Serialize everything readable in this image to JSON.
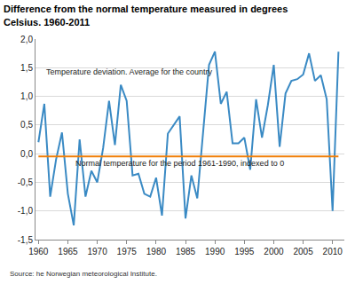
{
  "chart_data": {
    "type": "line",
    "title": "Difference from the normal temperature measured in degrees\nCelsius. 1960-2011",
    "source": "Source: he Norwegian meteorological Institute.",
    "x": [
      1960,
      1961,
      1962,
      1963,
      1964,
      1965,
      1966,
      1967,
      1968,
      1969,
      1970,
      1971,
      1972,
      1973,
      1974,
      1975,
      1976,
      1977,
      1978,
      1979,
      1980,
      1981,
      1982,
      1983,
      1984,
      1985,
      1986,
      1987,
      1988,
      1989,
      1990,
      1991,
      1992,
      1993,
      1994,
      1995,
      1996,
      1997,
      1998,
      1999,
      2000,
      2001,
      2002,
      2003,
      2004,
      2005,
      2006,
      2007,
      2008,
      2009,
      2010,
      2011
    ],
    "series": [
      {
        "color": "#3a8ac4",
        "values": [
          0.2,
          0.87,
          -0.75,
          -0.1,
          0.37,
          -0.7,
          -1.25,
          0.25,
          -0.75,
          -0.3,
          -0.5,
          0.1,
          0.92,
          0.15,
          1.2,
          0.92,
          -0.38,
          -0.35,
          -0.7,
          -0.75,
          -0.42,
          -1.08,
          0.35,
          0.5,
          0.65,
          -1.13,
          -0.38,
          -0.78,
          0.35,
          1.55,
          1.78,
          0.87,
          1.08,
          0.18,
          0.18,
          0.28,
          -0.28,
          0.95,
          0.28,
          0.85,
          1.55,
          0.12,
          1.05,
          1.27,
          1.3,
          1.38,
          1.75,
          1.27,
          1.37,
          0.95,
          -1.0,
          1.78
        ]
      },
      {
        "color": "#f07f09",
        "values": [
          -0.05,
          -0.05,
          -0.05,
          -0.05,
          -0.05,
          -0.05,
          -0.05,
          -0.05,
          -0.05,
          -0.05,
          -0.05,
          -0.05,
          -0.05,
          -0.05,
          -0.05,
          -0.05,
          -0.05,
          -0.05,
          -0.05,
          -0.05,
          -0.05,
          -0.05,
          -0.05,
          -0.05,
          -0.05,
          -0.05,
          -0.05,
          -0.05,
          -0.05,
          -0.05,
          -0.05,
          -0.05,
          -0.05,
          -0.05,
          -0.05,
          -0.05,
          -0.05,
          -0.05,
          -0.05,
          -0.05,
          -0.05,
          -0.05,
          -0.05,
          -0.05,
          -0.05,
          -0.05,
          -0.05,
          -0.05,
          -0.05,
          -0.05,
          -0.05,
          -0.05
        ]
      }
    ],
    "annotations": [
      {
        "text": "Temperature deviation. Average for the country",
        "x": 1961,
        "y": 1.42
      },
      {
        "text": "Normal temperature for the period 1961-1990, indexed to 0",
        "x": 1966,
        "y": -0.17
      }
    ],
    "xlim": [
      1959.5,
      2012
    ],
    "xticks": [
      1960,
      1965,
      1970,
      1975,
      1980,
      1985,
      1990,
      1995,
      2000,
      2005,
      2010
    ],
    "ylim": [
      -1.5,
      2
    ],
    "yticks": [
      {
        "value": -1.5,
        "label": "-1,5"
      },
      {
        "value": -1,
        "label": "-1,0"
      },
      {
        "value": -0.5,
        "label": "-0,5"
      },
      {
        "value": 0,
        "label": "0,0"
      },
      {
        "value": 0.5,
        "label": "0,5"
      },
      {
        "value": 1,
        "label": "1,0"
      },
      {
        "value": 1.5,
        "label": "1,5"
      },
      {
        "value": 2,
        "label": "2,0"
      }
    ],
    "grid": true
  }
}
